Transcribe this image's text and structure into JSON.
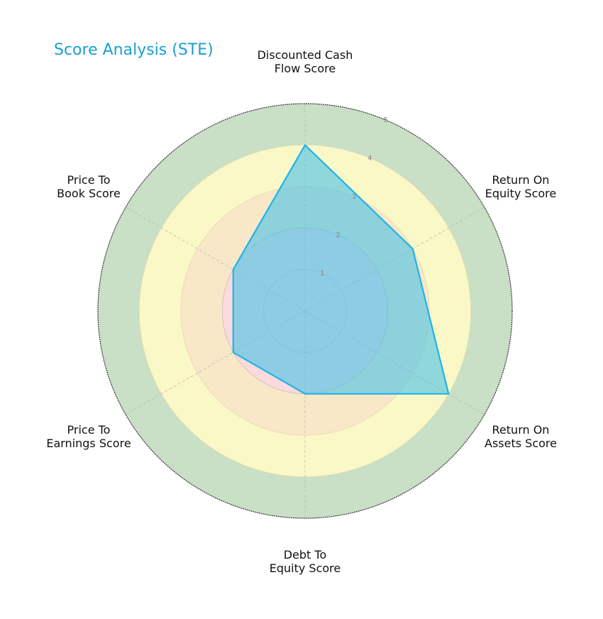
{
  "chart_data": {
    "type": "radar",
    "title": "Score Analysis (STE)",
    "categories": [
      "Discounted Cash Flow Score",
      "Return On Equity Score",
      "Return On Assets Score",
      "Debt To Equity Score",
      "Price To Earnings Score",
      "Price To Book Score"
    ],
    "category_labels": [
      [
        "Discounted Cash",
        "Flow Score"
      ],
      [
        "Return On",
        "Equity Score"
      ],
      [
        "Return On",
        "Assets Score"
      ],
      [
        "Debt To",
        "Equity Score"
      ],
      [
        "Price To",
        "Earnings Score"
      ],
      [
        "Price To",
        "Book Score"
      ]
    ],
    "series": [
      {
        "name": "STE",
        "values": [
          4,
          3,
          4,
          2,
          2,
          2
        ]
      }
    ],
    "rlim": [
      0,
      5
    ],
    "r_ticks": [
      "1",
      "2",
      "3",
      "4",
      "5"
    ],
    "bands": [
      {
        "from": 0,
        "to": 1,
        "color": "#c6d7f0"
      },
      {
        "from": 1,
        "to": 2,
        "color": "#cfe0f2"
      },
      {
        "from": 2,
        "to": 3,
        "color": "#fadadd"
      },
      {
        "from": 3,
        "to": 4,
        "color": "#f8e8c8"
      },
      {
        "from": 4,
        "to": 5,
        "color": "#fbf8c8"
      },
      {
        "from": 5,
        "to": 5,
        "color": "#c9dfc6"
      }
    ],
    "colors": {
      "title": "#1a9fcf",
      "line": "#1eb4e8",
      "fill": "#4cc4e6"
    }
  }
}
